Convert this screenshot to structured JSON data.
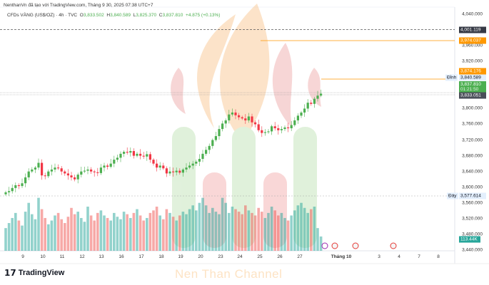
{
  "header": {
    "credit": "NenthanVn đã tạo với TradingView.com, Tháng 9 30, 2025 07:38 UTC+7",
    "symbol": "CFDs VÀNG (US$/OZ) · 4h · TVC",
    "o_label": "O",
    "o": "3,833.502",
    "h_label": "H",
    "h": "3,840.589",
    "l_label": "L",
    "l": "3,825.370",
    "c_label": "C",
    "c": "3,837.810",
    "change": "+4.875 (+0.13%)"
  },
  "price_axis": {
    "ticks": [
      "4,040.000",
      "3,960.000",
      "3,920.000",
      "3,800.000",
      "3,760.000",
      "3,720.000",
      "3,680.000",
      "3,640.000",
      "3,600.000",
      "3,560.000",
      "3,520.000",
      "3,480.000",
      "3,440.000"
    ]
  },
  "tags": {
    "alert1": "4,001.119",
    "orange1": "3,974.037",
    "orange2": "3,874.176",
    "high_label": "Đỉnh",
    "high": "3,840.589",
    "last": "3,837.810",
    "countdown": "01:21:50",
    "prev": "3,833.051",
    "low_label": "Đáy",
    "low": "3,577.614",
    "volume": "113.44K"
  },
  "time_axis": {
    "labels": [
      "9",
      "10",
      "11",
      "12",
      "13",
      "16",
      "17",
      "18",
      "19",
      "20",
      "23",
      "24",
      "25",
      "26",
      "27",
      "Tháng 10",
      "3",
      "4",
      "7",
      "8"
    ]
  },
  "footer": {
    "brand": "TradingView",
    "watermark": "Nen Than Channel"
  },
  "colors": {
    "up": "#4caf50",
    "down": "#f23645",
    "vol_up": "#26a69a",
    "vol_down": "#ef5350",
    "orange": "#ff9800",
    "dark_tag": "#363a45"
  },
  "chart_data": {
    "type": "candlestick",
    "interval": "4h",
    "ylim": [
      3440,
      4040
    ],
    "first_close": 3582,
    "closes": [
      3587,
      3590,
      3598,
      3605,
      3603,
      3610,
      3625,
      3640,
      3645,
      3650,
      3662,
      3630,
      3628,
      3640,
      3645,
      3650,
      3648,
      3640,
      3635,
      3630,
      3625,
      3620,
      3632,
      3640,
      3642,
      3645,
      3640,
      3638,
      3636,
      3650,
      3655,
      3652,
      3660,
      3670,
      3675,
      3685,
      3690,
      3688,
      3692,
      3680,
      3685,
      3680,
      3678,
      3684,
      3670,
      3660,
      3650,
      3655,
      3648,
      3635,
      3640,
      3638,
      3642,
      3637,
      3645,
      3650,
      3655,
      3660,
      3665,
      3672,
      3685,
      3695,
      3705,
      3720,
      3730,
      3748,
      3762,
      3770,
      3785,
      3790,
      3783,
      3778,
      3775,
      3770,
      3780,
      3765,
      3760,
      3745,
      3738,
      3740,
      3742,
      3755,
      3750,
      3745,
      3748,
      3752,
      3750,
      3758,
      3770,
      3782,
      3790,
      3800,
      3815,
      3812,
      3825,
      3833,
      3838
    ],
    "volumes_k": [
      180,
      220,
      260,
      300,
      240,
      200,
      310,
      380,
      290,
      250,
      420,
      330,
      260,
      210,
      240,
      280,
      300,
      250,
      220,
      270,
      340,
      290,
      310,
      260,
      230,
      350,
      280,
      240,
      300,
      320,
      280,
      260,
      240,
      300,
      270,
      250,
      310,
      290,
      260,
      300,
      330,
      280,
      240,
      260,
      300,
      320,
      350,
      280,
      250,
      330,
      300,
      270,
      240,
      280,
      310,
      290,
      330,
      360,
      320,
      380,
      420,
      360,
      300,
      340,
      310,
      290,
      420,
      380,
      300,
      350,
      330,
      310,
      290,
      360,
      320,
      300,
      280,
      340,
      310,
      260,
      300,
      350,
      320,
      280,
      300,
      260,
      240,
      280,
      320,
      360,
      380,
      340,
      300,
      330,
      350,
      180,
      113.44
    ]
  }
}
